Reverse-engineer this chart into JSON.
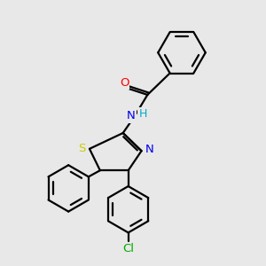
{
  "bg_color": "#e8e8e8",
  "bond_color": "#000000",
  "atom_colors": {
    "O": "#ff0000",
    "N": "#0000ee",
    "S": "#cccc00",
    "Cl": "#00aa00",
    "H": "#00aacc"
  },
  "fig_bg": "#e8e8e8",
  "lw": 1.6
}
